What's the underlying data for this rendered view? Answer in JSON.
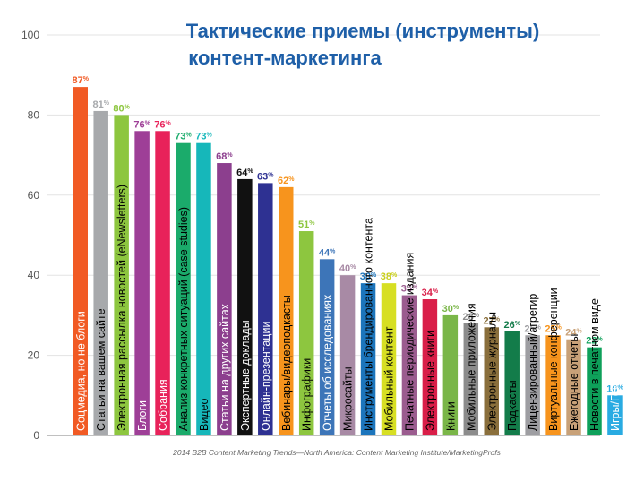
{
  "chart_data": {
    "type": "bar",
    "orientation": "vertical",
    "title_lines": [
      "Тактические приемы (инструменты)",
      "контент-маркетинга"
    ],
    "source": "2014 B2B Content Marketing Trends—North America: Content Marketing Institute/MarketingProfs",
    "ylim": [
      0,
      100
    ],
    "yticks": [
      "0",
      "20",
      "40",
      "60",
      "80",
      "100"
    ],
    "grid": true,
    "value_suffix": "%",
    "categories": [
      "Соцмедиа, но не блоги",
      "Статьи на вашем сайте",
      "Электронная рассылка новостей (eNewsletters)",
      "Блоги",
      "Собрания",
      "Анализ конкретных ситуаций (case studies)",
      "Видео",
      "Статьи на других сайтах",
      "Экспертные доклады",
      "Онлайн-презентации",
      "Вебинары/видеоподкасты",
      "Инфографики",
      "Отчеты об исследованиях",
      "Микросайты",
      "Инструменты брендированного контента",
      "Мобильный контент",
      "Печатные периодические издания",
      "Электронные книги",
      "Книги",
      "Мобильные приложения",
      "Электронные журналы",
      "Подкасты",
      "Лицензированный/агрегир",
      "Виртуальные конференции",
      "Ежегодные отчеты",
      "Новости в печатном виде",
      "Игры/Геймификации"
    ],
    "values": [
      87,
      81,
      80,
      76,
      76,
      73,
      73,
      68,
      64,
      63,
      62,
      51,
      44,
      40,
      38,
      38,
      35,
      34,
      30,
      28,
      27,
      26,
      25,
      25,
      24,
      22,
      10
    ],
    "colors": [
      "#f15a24",
      "#a7a9ac",
      "#8dc63f",
      "#9e3f97",
      "#e8225a",
      "#1bab6b",
      "#16b7ba",
      "#8c3f8e",
      "#111111",
      "#2e3192",
      "#f7941d",
      "#8dc63f",
      "#3d75b8",
      "#a88aa5",
      "#1c75bc",
      "#d7df23",
      "#9b5c8f",
      "#d91e48",
      "#7ab648",
      "#8c8c8c",
      "#8a6f3c",
      "#137c4a",
      "#9e9ea2",
      "#f7941d",
      "#c8a178",
      "#0ea05a",
      "#29abe2"
    ],
    "label_colors": [
      "#ffffff",
      "#000000",
      "#000000",
      "#ffffff",
      "#ffffff",
      "#000000",
      "#000000",
      "#ffffff",
      "#ffffff",
      "#ffffff",
      "#000000",
      "#000000",
      "#ffffff",
      "#000000",
      "#000000",
      "#000000",
      "#000000",
      "#000000",
      "#000000",
      "#000000",
      "#000000",
      "#000000",
      "#000000",
      "#000000",
      "#000000",
      "#000000",
      "#ffffff"
    ],
    "value_colors": [
      "#f15a24",
      "#a7a9ac",
      "#8dc63f",
      "#9e3f97",
      "#e8225a",
      "#1bab6b",
      "#16b7ba",
      "#8c3f8e",
      "#111111",
      "#2e3192",
      "#f7941d",
      "#8dc63f",
      "#3d75b8",
      "#a88aa5",
      "#1c75bc",
      "#c9cf1c",
      "#9b5c8f",
      "#d91e48",
      "#7ab648",
      "#8c8c8c",
      "#8a6f3c",
      "#137c4a",
      "#9e9ea2",
      "#f7941d",
      "#c8a178",
      "#0ea05a",
      "#29abe2"
    ]
  }
}
